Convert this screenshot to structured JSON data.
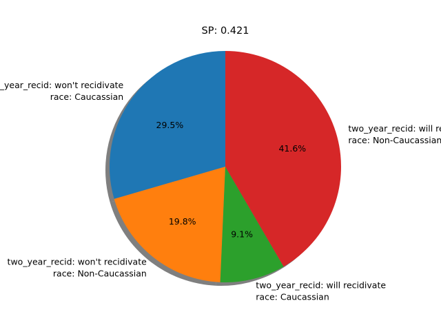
{
  "chart_data": {
    "type": "pie",
    "title": "SP: 0.421",
    "shadow": true,
    "start_angle_deg": 90,
    "direction": "counterclockwise",
    "slices": [
      {
        "label_line1": "two_year_recid: won't recidivate",
        "label_line2": "race: Caucassian",
        "value": 29.5,
        "pct_label": "29.5%",
        "color": "#1f77b4"
      },
      {
        "label_line1": "two_year_recid: won't recidivate",
        "label_line2": "race: Non-Caucassian",
        "value": 19.8,
        "pct_label": "19.8%",
        "color": "#ff7f0e"
      },
      {
        "label_line1": "two_year_recid: will recidivate",
        "label_line2": "race: Caucassian",
        "value": 9.1,
        "pct_label": "9.1%",
        "color": "#2ca02c"
      },
      {
        "label_line1": "two_year_recid: will recidivate",
        "label_line2": "race: Non-Caucassian",
        "value": 41.6,
        "pct_label": "41.6%",
        "color": "#d62728"
      }
    ]
  }
}
